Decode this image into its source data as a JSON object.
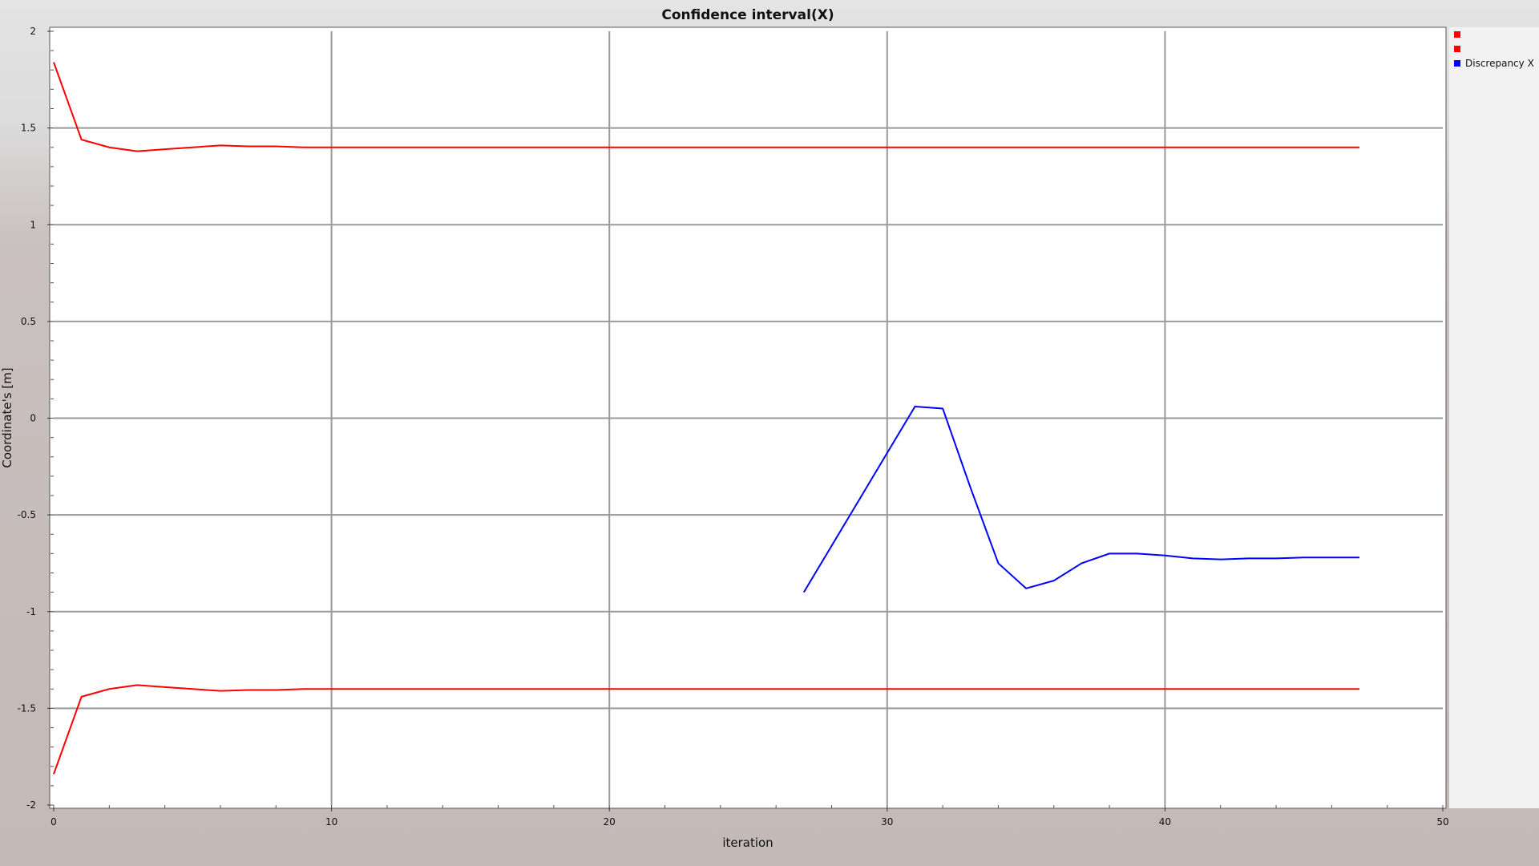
{
  "chart_data": {
    "type": "line",
    "title": "Confidence interval(X)",
    "xlabel": "iteration",
    "ylabel": "Coordinate's [m]",
    "xlim": [
      0,
      50
    ],
    "ylim": [
      -2,
      2
    ],
    "x_ticks": [
      "0",
      "10",
      "20",
      "30",
      "40",
      "50"
    ],
    "y_ticks": [
      "2",
      "1.5",
      "1",
      "0.5",
      "0",
      "-0.5",
      "-1",
      "-1.5",
      "-2"
    ],
    "grid": true,
    "legend_position": "right",
    "series": [
      {
        "name": "",
        "color": "#ff0000",
        "x": [
          0,
          1,
          2,
          3,
          4,
          5,
          6,
          7,
          8,
          9,
          10,
          11,
          12,
          13,
          14,
          15,
          16,
          17,
          18,
          19,
          20,
          21,
          22,
          23,
          24,
          25,
          26,
          27,
          28,
          29,
          30,
          31,
          32,
          33,
          34,
          35,
          36,
          37,
          38,
          39,
          40,
          41,
          42,
          43,
          44,
          45,
          46,
          47
        ],
        "values": [
          1.84,
          1.44,
          1.4,
          1.38,
          1.39,
          1.4,
          1.41,
          1.405,
          1.405,
          1.4,
          1.4,
          1.4,
          1.4,
          1.4,
          1.4,
          1.4,
          1.4,
          1.4,
          1.4,
          1.4,
          1.4,
          1.4,
          1.4,
          1.4,
          1.4,
          1.4,
          1.4,
          1.4,
          1.4,
          1.4,
          1.4,
          1.4,
          1.4,
          1.4,
          1.4,
          1.4,
          1.4,
          1.4,
          1.4,
          1.4,
          1.4,
          1.4,
          1.4,
          1.4,
          1.4,
          1.4,
          1.4,
          1.4
        ]
      },
      {
        "name": "",
        "color": "#ff0000",
        "x": [
          0,
          1,
          2,
          3,
          4,
          5,
          6,
          7,
          8,
          9,
          10,
          11,
          12,
          13,
          14,
          15,
          16,
          17,
          18,
          19,
          20,
          21,
          22,
          23,
          24,
          25,
          26,
          27,
          28,
          29,
          30,
          31,
          32,
          33,
          34,
          35,
          36,
          37,
          38,
          39,
          40,
          41,
          42,
          43,
          44,
          45,
          46,
          47
        ],
        "values": [
          -1.84,
          -1.44,
          -1.4,
          -1.38,
          -1.39,
          -1.4,
          -1.41,
          -1.405,
          -1.405,
          -1.4,
          -1.4,
          -1.4,
          -1.4,
          -1.4,
          -1.4,
          -1.4,
          -1.4,
          -1.4,
          -1.4,
          -1.4,
          -1.4,
          -1.4,
          -1.4,
          -1.4,
          -1.4,
          -1.4,
          -1.4,
          -1.4,
          -1.4,
          -1.4,
          -1.4,
          -1.4,
          -1.4,
          -1.4,
          -1.4,
          -1.4,
          -1.4,
          -1.4,
          -1.4,
          -1.4,
          -1.4,
          -1.4,
          -1.4,
          -1.4,
          -1.4,
          -1.4,
          -1.4,
          -1.4
        ]
      },
      {
        "name": "Discrepancy X",
        "color": "#0000ff",
        "x": [
          27,
          28,
          29,
          30,
          31,
          32,
          33,
          34,
          35,
          36,
          37,
          38,
          39,
          40,
          41,
          42,
          43,
          44,
          45,
          46,
          47
        ],
        "values": [
          -0.9,
          -0.66,
          -0.42,
          -0.18,
          0.06,
          0.05,
          -0.36,
          -0.75,
          -0.88,
          -0.84,
          -0.75,
          -0.7,
          -0.7,
          -0.71,
          -0.725,
          -0.73,
          -0.725,
          -0.725,
          -0.72,
          -0.72,
          -0.72
        ]
      }
    ]
  }
}
